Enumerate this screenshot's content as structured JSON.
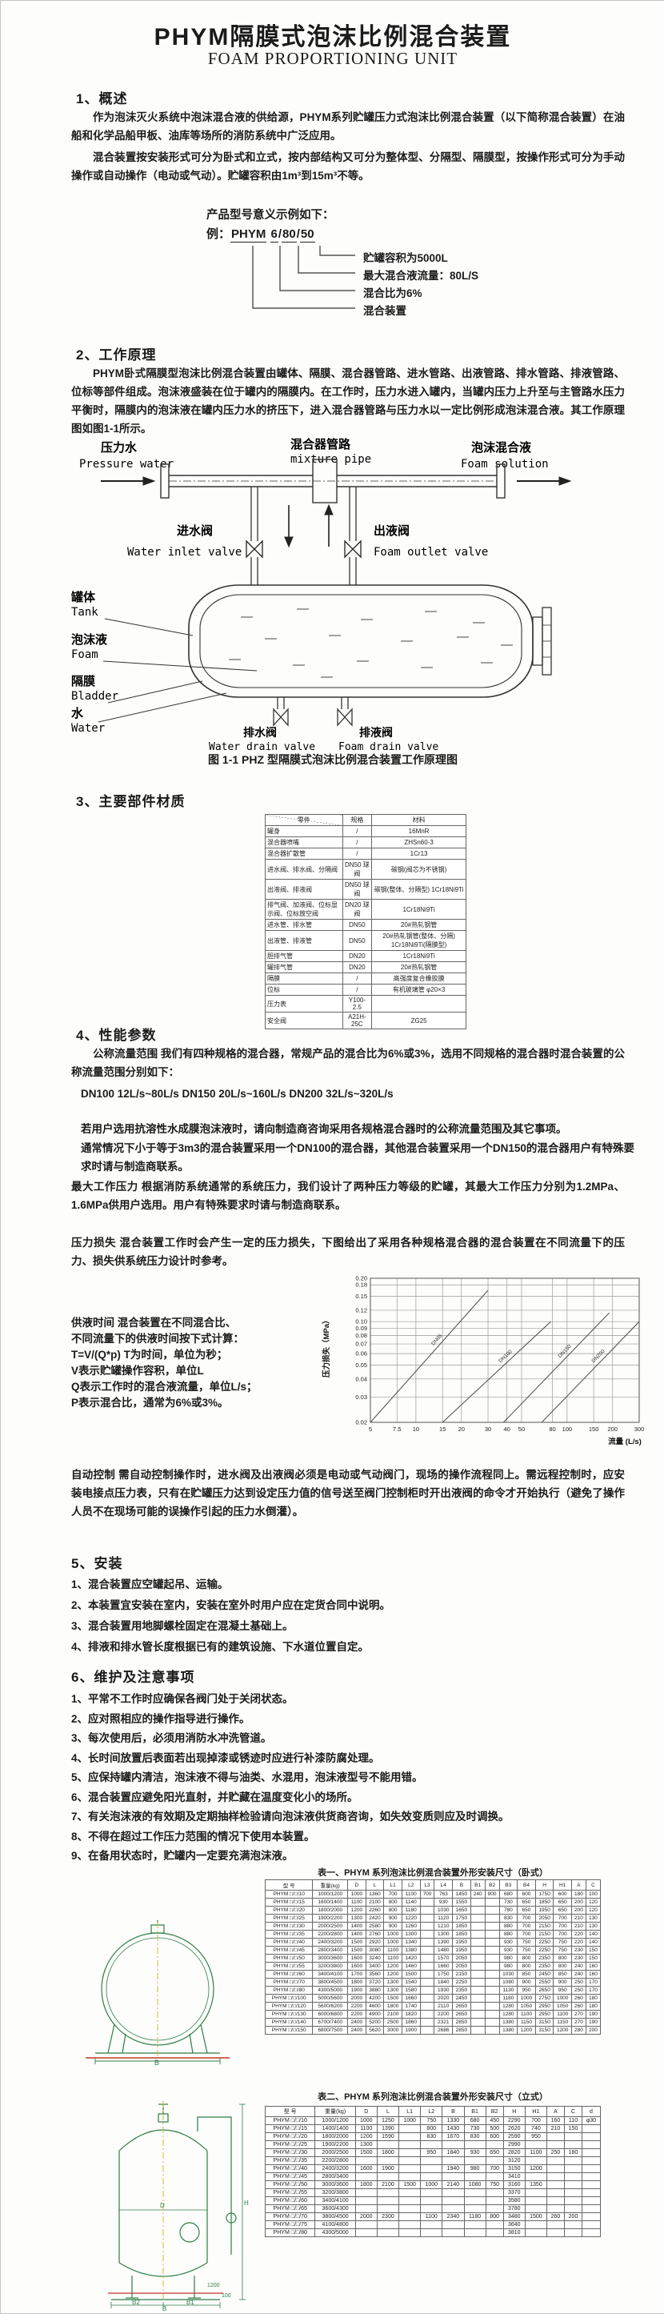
{
  "doc": {
    "title": "PHYM隔膜式泡沫比例混合装置",
    "subtitle": "FOAM PROPORTIONING UNIT"
  },
  "s1": {
    "heading": "1、概述",
    "p1": "作为泡沫灭火系统中泡沫混合液的供给源，PHYM系列贮罐压力式泡沫比例混合装置（以下简称混合装置）在油船和化学品船甲板、油库等场所的消防系统中广泛应用。",
    "p2": "混合装置按安装形式可分为卧式和立式，按内部结构又可分为整体型、分隔型、隔膜型，按操作形式可分为手动操作或自动操作（电动或气动）。贮罐容积由1m³到15m³不等。"
  },
  "model": {
    "intro": "产品型号意义示例如下：",
    "example_label": "例：",
    "code": [
      "PHYM",
      "6",
      "80",
      "50"
    ],
    "callouts": [
      "贮罐容积为5000L",
      "最大混合液流量：80L/S",
      "混合比为6%",
      "混合装置"
    ]
  },
  "s2": {
    "heading": "2、工作原理",
    "p1": "PHYM卧式隔膜型泡沫比例混合装置由罐体、隔膜、混合器管路、进水管路、出液管路、排水管路、排液管路、位标等部件组成。泡沫液盛装在位于罐内的隔膜内。在工作时，压力水进入罐内，当罐内压力上升至与主管路水压力平衡时，隔膜内的泡沫液在罐内压力水的挤压下，进入混合器管路与压力水以一定比例形成泡沫混合液。其工作原理图如图1-1所示。"
  },
  "figure": {
    "caption": "图 1-1 PHZ 型隔膜式泡沫比例混合装置工作原理图",
    "labels": {
      "pressure_water_cn": "压力水",
      "pressure_water_en": "Pressure water",
      "mixture_pipe_cn": "混合器管路",
      "mixture_pipe_en": "mixture pipe",
      "foam_solution_cn": "泡沫混合液",
      "foam_solution_en": "Foam solution",
      "inlet_valve_cn": "进水阀",
      "inlet_valve_en": "Water inlet valve",
      "outlet_valve_cn": "出液阀",
      "outlet_valve_en": "Foam outlet valve",
      "tank_cn": "罐体",
      "tank_en": "Tank",
      "foam_cn": "泡沫液",
      "foam_en": "Foam",
      "bladder_cn": "隔膜",
      "bladder_en": "Bladder",
      "water_cn": "水",
      "water_en": "Water",
      "water_drain_cn": "排水阀",
      "water_drain_en": "Water drain valve",
      "foam_drain_cn": "排液阀",
      "foam_drain_en": "Foam drain valve"
    }
  },
  "s3": {
    "heading": "3、主要部件材质",
    "table": {
      "headers": [
        "零件",
        "规格",
        "材料"
      ],
      "rows": [
        [
          "罐身",
          "/",
          "16MnR"
        ],
        [
          "混合器喷嘴",
          "/",
          "ZHSn60-3"
        ],
        [
          "混合器扩散管",
          "/",
          "1Cr13"
        ],
        [
          "进水阀、排水阀、分隔阀",
          "DN50 球阀",
          "碳钢(阀芯为不锈钢)"
        ],
        [
          "出液阀、排液阀",
          "DN50 球阀",
          "碳钢(整体、分隔型) 1Cr18Ni9Ti"
        ],
        [
          "排气阀、加液阀、位标显示阀、位标放空阀",
          "DN20 球阀",
          "1Cr18Ni9Ti"
        ],
        [
          "进水管、排水管",
          "DN50",
          "20#热轧钢管"
        ],
        [
          "出液管、排液管",
          "DN50",
          "20#热轧钢管(整体、分隔) 1Cr18Ni9Ti(隔膜型)"
        ],
        [
          "胆排气管",
          "DN20",
          "1Cr18Ni9Ti"
        ],
        [
          "罐排气管",
          "DN20",
          "20#热轧钢管"
        ],
        [
          "隔膜",
          "/",
          "高强度复合橡胶膜"
        ],
        [
          "位标",
          "/",
          "有机玻璃管 φ20×3"
        ],
        [
          "压力表",
          "Y100-2.5",
          ""
        ],
        [
          "安全阀",
          "A21H-25C",
          "ZG25"
        ]
      ]
    }
  },
  "s4": {
    "heading": "4、性能参数",
    "p1": "公称流量范围  我们有四种规格的混合器，常规产品的混合比为6%或3%，选用不同规格的混合器时混合装置的公称流量范围分别如下：",
    "p2": "DN100  12L/s~80L/s   DN150  20L/s~160L/s   DN200  32L/s~320L/s",
    "p3": "若用户选用抗溶性水成膜泡沫液时，请向制造商咨询采用各规格混合器时的公称流量范围及其它事项。",
    "p4": "通常情况下小于等于3m3的混合装置采用一个DN100的混合器，其他混合装置采用一个DN150的混合器用户有特殊要求时请与制造商联系。",
    "p5": "最大工作压力  根据消防系统通常的系统压力，我们设计了两种压力等级的贮罐，其最大工作压力分别为1.2MPa、1.6MPa供用户选用。用户有特殊要求时请与制造商联系。",
    "p6": "压力损失  混合装置工作时会产生一定的压力损失，下图给出了采用各种规格混合器的混合装置在不同流量下的压力、损失供系统压力设计时参考。",
    "supply": [
      "供液时间  混合装置在不同混合比、",
      "不同流量下的供液时间按下式计算：",
      "T=V/(Q*p)      T为时间，单位为秒；",
      "V表示贮罐操作容积，单位L",
      "Q表示工作时的混合液流量，单位L/s；",
      "P表示混合比，通常为6%或3%。"
    ],
    "auto": "自动控制  需自动控制操作时，进水阀及出液阀必须是电动或气动阀门，现场的操作流程同上。需远程控制时，应安装电接点压力表，只有在贮罐压力达到设定压力值的信号送至阀门控制柜时开出液阀的命令才开始执行（避免了操作人员不在现场可能的误操作引起的压力水倒灌）。"
  },
  "chart_data": {
    "type": "line",
    "title": "",
    "xlabel": "流量 (L/s)",
    "ylabel": "压力损失（MPa）",
    "x_scale": "log",
    "y_scale": "log",
    "xlim": [
      5,
      300
    ],
    "ylim": [
      0.02,
      0.2
    ],
    "grid": true,
    "legend_position": "on-line-labels",
    "x_ticks": [
      "5",
      "7.5",
      "10",
      "15",
      "20",
      "30",
      "40",
      "50",
      "80",
      "100",
      "150",
      "200",
      "300"
    ],
    "y_ticks": [
      "0.02",
      "0.03",
      "0.04",
      "0.05",
      "0.06",
      "0.07",
      "0.08",
      "0.09",
      "0.10",
      "0.12",
      "0.15",
      "0.18",
      "0.20"
    ],
    "series": [
      {
        "name": "DN65",
        "points": [
          [
            5,
            0.02
          ],
          [
            30,
            0.165
          ]
        ]
      },
      {
        "name": "DN100",
        "points": [
          [
            15,
            0.02
          ],
          [
            78,
            0.1
          ]
        ]
      },
      {
        "name": "DN150",
        "points": [
          [
            38,
            0.02
          ],
          [
            190,
            0.115
          ]
        ]
      },
      {
        "name": "DN200",
        "points": [
          [
            68,
            0.02
          ],
          [
            300,
            0.1
          ]
        ]
      }
    ]
  },
  "s5": {
    "heading": "5、安装",
    "items": [
      "1、混合装置应空罐起吊、运输。",
      "2、本装置宜安装在室内，安装在室外时用户应在定货合同中说明。",
      "3、混合装置用地脚螺栓固定在混凝土基础上。",
      "4、排液和排水管长度根据已有的建筑设施、下水道位置自定。"
    ]
  },
  "s6": {
    "heading": "6、维护及注意事项",
    "items": [
      "1、平常不工作时应确保各阀门处于关闭状态。",
      "2、应对照相应的操作指导进行操作。",
      "3、每次使用后，必须用消防水冲洗管道。",
      "4、长时间放置后表面若出现掉漆或锈迹时应进行补漆防腐处理。",
      "5、应保持罐内清洁，泡沫液不得与油类、水混用，泡沫液型号不能用错。",
      "6、混合装置应避免阳光直射，并贮藏在温度变化小的场所。",
      "7、有关泡沫液的有效期及定期抽样检验请向泡沫液供货商咨询，如失效变质则应及时调换。",
      "8、不得在超过工作压力范围的情况下使用本装置。",
      "9、在备用状态时，贮罐内一定要充满泡沫液。"
    ]
  },
  "table1": {
    "title": "表一、PHYM 系列泡沫比例混合装置外形安装尺寸（卧式）",
    "headers": [
      "型 号",
      "重量(kg)",
      "D",
      "L",
      "L1",
      "L2",
      "L3",
      "L4",
      "B",
      "B1",
      "B2",
      "B3",
      "B4",
      "H",
      "H1",
      "A",
      "C"
    ],
    "rows": [
      [
        "PHYM □/□/10",
        "1000/1200",
        "1000",
        "1360",
        "700",
        "1100",
        "700",
        "763",
        "1450",
        "240",
        "900",
        "680",
        "600",
        "1750",
        "600",
        "180",
        "100"
      ],
      [
        "PHYM □/□/15",
        "1600/1400",
        "1100",
        "2100",
        "800",
        "1140",
        "",
        "930",
        "1550",
        "",
        "",
        "730",
        "650",
        "1850",
        "650",
        "200",
        "120"
      ],
      [
        "PHYM □/□/20",
        "1800/2000",
        "1200",
        "2260",
        "800",
        "1180",
        "",
        "1030",
        "1650",
        "",
        "",
        "780",
        "650",
        "1950",
        "650",
        "200",
        "120"
      ],
      [
        "PHYM □/□/25",
        "1900/2200",
        "1300",
        "2420",
        "900",
        "1220",
        "",
        "1120",
        "1750",
        "",
        "",
        "830",
        "700",
        "2050",
        "700",
        "210",
        "130"
      ],
      [
        "PHYM □/□/30",
        "2000/2500",
        "1400",
        "2580",
        "900",
        "1260",
        "",
        "1210",
        "1850",
        "",
        "",
        "880",
        "700",
        "2150",
        "700",
        "210",
        "130"
      ],
      [
        "PHYM □/□/35",
        "2200/2800",
        "1400",
        "2760",
        "1000",
        "1300",
        "",
        "1300",
        "1850",
        "",
        "",
        "880",
        "700",
        "2150",
        "700",
        "220",
        "140"
      ],
      [
        "PHYM □/□/40",
        "2400/3200",
        "1500",
        "2920",
        "1000",
        "1340",
        "",
        "1390",
        "1950",
        "",
        "",
        "930",
        "750",
        "2250",
        "750",
        "220",
        "140"
      ],
      [
        "PHYM □/□/45",
        "2800/3400",
        "1500",
        "3080",
        "1100",
        "1380",
        "",
        "1480",
        "1950",
        "",
        "",
        "930",
        "750",
        "2250",
        "750",
        "230",
        "150"
      ],
      [
        "PHYM □/□/50",
        "3000/3600",
        "1600",
        "3240",
        "1100",
        "1420",
        "",
        "1570",
        "2050",
        "",
        "",
        "980",
        "800",
        "2350",
        "800",
        "230",
        "150"
      ],
      [
        "PHYM □/□/55",
        "3200/3800",
        "1600",
        "3400",
        "1200",
        "1460",
        "",
        "1660",
        "2050",
        "",
        "",
        "980",
        "800",
        "2350",
        "800",
        "240",
        "160"
      ],
      [
        "PHYM □/□/60",
        "3400/4100",
        "1700",
        "3560",
        "1200",
        "1500",
        "",
        "1750",
        "2150",
        "",
        "",
        "1030",
        "850",
        "2450",
        "850",
        "240",
        "160"
      ],
      [
        "PHYM □/□/70",
        "3800/4500",
        "1800",
        "3720",
        "1300",
        "1540",
        "",
        "1840",
        "2250",
        "",
        "",
        "1080",
        "900",
        "2550",
        "900",
        "250",
        "170"
      ],
      [
        "PHYM □/□/80",
        "4300/5000",
        "1900",
        "3880",
        "1300",
        "1580",
        "",
        "1930",
        "2350",
        "",
        "",
        "1130",
        "950",
        "2650",
        "950",
        "250",
        "170"
      ],
      [
        "PHYM □/□/100",
        "5000/5600",
        "2000",
        "4200",
        "1500",
        "1660",
        "",
        "2020",
        "2450",
        "",
        "",
        "1180",
        "1000",
        "2750",
        "1000",
        "260",
        "180"
      ],
      [
        "PHYM □/□/120",
        "5600/6200",
        "2200",
        "4600",
        "1800",
        "1740",
        "",
        "2110",
        "2650",
        "",
        "",
        "1280",
        "1050",
        "2950",
        "1050",
        "260",
        "180"
      ],
      [
        "PHYM □/□/130",
        "6000/6800",
        "2200",
        "4900",
        "2100",
        "1820",
        "",
        "2200",
        "2650",
        "",
        "",
        "1280",
        "1100",
        "2950",
        "1100",
        "270",
        "190"
      ],
      [
        "PHYM □/□/140",
        "6700/7400",
        "2400",
        "5200",
        "2500",
        "1860",
        "",
        "2321",
        "2850",
        "",
        "",
        "1380",
        "1150",
        "3150",
        "1150",
        "270",
        "190"
      ],
      [
        "PHYM □/□/150",
        "6800/7500",
        "2400",
        "5620",
        "3000",
        "1900",
        "",
        "2686",
        "2850",
        "",
        "",
        "1380",
        "1200",
        "3150",
        "1200",
        "280",
        "200"
      ]
    ]
  },
  "table2": {
    "title": "表二、PHYM 系列泡沫比例混合装置外形安装尺寸（立式）",
    "headers": [
      "型 号",
      "重量(kg)",
      "D",
      "L",
      "L1",
      "L2",
      "B",
      "B1",
      "B2",
      "H",
      "H1",
      "A",
      "C",
      "d"
    ],
    "rows": [
      [
        "PHYM □/□/10",
        "1000/1200",
        "1000",
        "1250",
        "1000",
        "750",
        "1330",
        "680",
        "450",
        "2290",
        "700",
        "160",
        "110",
        "φ30"
      ],
      [
        "PHYM □/□/15",
        "1400/1400",
        "1100",
        "1390",
        "",
        "800",
        "1430",
        "730",
        "500",
        "2620",
        "740",
        "210",
        "150",
        ""
      ],
      [
        "PHYM □/□/20",
        "1800/2000",
        "1200",
        "1590",
        "",
        "830",
        "1670",
        "830",
        "600",
        "2590",
        "950",
        "",
        "",
        ""
      ],
      [
        "PHYM □/□/25",
        "1900/2200",
        "1300",
        "",
        "",
        "",
        "",
        "",
        "",
        "2990",
        "",
        "",
        "",
        ""
      ],
      [
        "PHYM □/□/30",
        "2000/2500",
        "1500",
        "1800",
        "",
        "950",
        "1840",
        "930",
        "650",
        "2820",
        "1100",
        "250",
        "180",
        ""
      ],
      [
        "PHYM □/□/35",
        "2200/2800",
        "",
        "",
        "",
        "",
        "",
        "",
        "",
        "3120",
        "",
        "",
        "",
        ""
      ],
      [
        "PHYM □/□/40",
        "2400/3200",
        "1600",
        "1900",
        "",
        "",
        "1940",
        "980",
        "700",
        "3150",
        "1200",
        "",
        "",
        ""
      ],
      [
        "PHYM □/□/45",
        "2800/3400",
        "",
        "",
        "",
        "",
        "",
        "",
        "",
        "3410",
        "",
        "",
        "",
        ""
      ],
      [
        "PHYM □/□/50",
        "3000/3600",
        "1800",
        "2100",
        "1500",
        "1000",
        "2140",
        "1080",
        "750",
        "3160",
        "1350",
        "",
        "",
        ""
      ],
      [
        "PHYM □/□/55",
        "3200/3800",
        "",
        "",
        "",
        "",
        "",
        "",
        "",
        "3370",
        "",
        "",
        "",
        ""
      ],
      [
        "PHYM □/□/60",
        "3400/4100",
        "",
        "",
        "",
        "",
        "",
        "",
        "",
        "3580",
        "",
        "",
        "",
        ""
      ],
      [
        "PHYM □/□/65",
        "3600/4300",
        "",
        "",
        "",
        "",
        "",
        "",
        "",
        "3780",
        "",
        "",
        "",
        ""
      ],
      [
        "PHYM □/□/70",
        "3800/4500",
        "2000",
        "2300",
        "",
        "1100",
        "2340",
        "1180",
        "800",
        "3480",
        "1500",
        "260",
        "200",
        ""
      ],
      [
        "PHYM □/□/75",
        "4100/4800",
        "",
        "",
        "",
        "",
        "",
        "",
        "",
        "3640",
        "",
        "",
        "",
        ""
      ],
      [
        "PHYM □/□/80",
        "4300/5000",
        "",
        "",
        "",
        "",
        "",
        "",
        "",
        "3810",
        "",
        "",
        "",
        ""
      ]
    ]
  },
  "drawings": {
    "d1": {
      "dim_b": "B"
    },
    "d2": {
      "dim_d": "D",
      "dim_h": "H",
      "dim_b": "B",
      "dim_b1": "B1",
      "dim_b2": "B2",
      "dim_leg": "1200",
      "dim_base": "100"
    }
  },
  "colors": {
    "drawing_green": "#2e7d46",
    "drawing_red": "#c0392b",
    "drawing_yellow": "#cdb93d",
    "ink": "#1b1b1b"
  }
}
